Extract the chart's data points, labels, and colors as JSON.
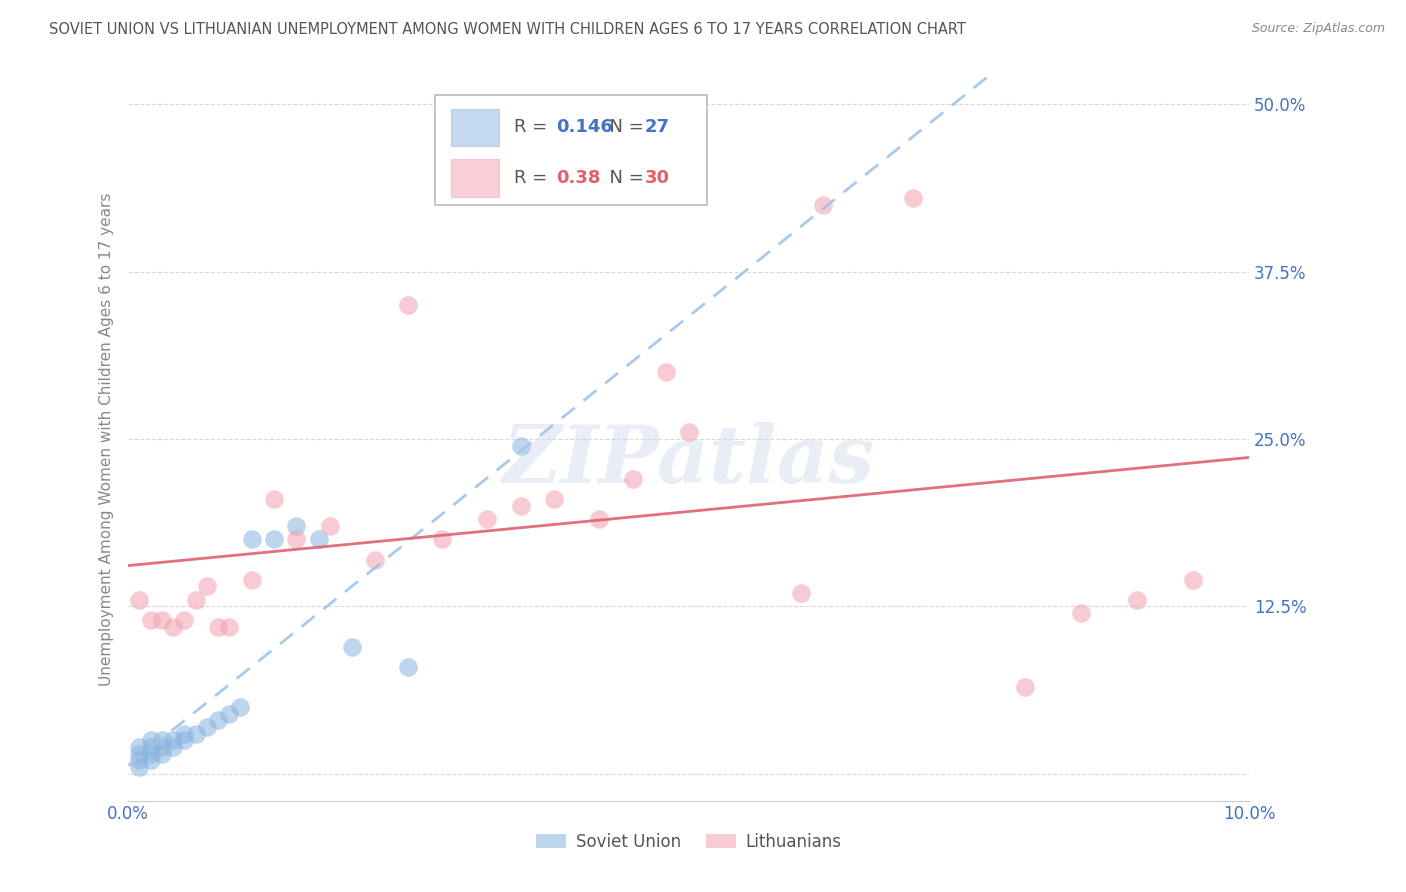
{
  "title": "SOVIET UNION VS LITHUANIAN UNEMPLOYMENT AMONG WOMEN WITH CHILDREN AGES 6 TO 17 YEARS CORRELATION CHART",
  "source": "Source: ZipAtlas.com",
  "ylabel": "Unemployment Among Women with Children Ages 6 to 17 years",
  "watermark": "ZIPatlas",
  "xlim": [
    0.0,
    0.1
  ],
  "ylim": [
    -0.02,
    0.52
  ],
  "yticks": [
    0.0,
    0.125,
    0.25,
    0.375,
    0.5
  ],
  "ytick_labels": [
    "",
    "12.5%",
    "25.0%",
    "37.5%",
    "50.0%"
  ],
  "xticks": [
    0.0,
    0.02,
    0.04,
    0.06,
    0.08,
    0.1
  ],
  "xtick_labels": [
    "0.0%",
    "",
    "",
    "",
    "",
    "10.0%"
  ],
  "soviet_R": 0.146,
  "soviet_N": 27,
  "lithuanian_R": 0.38,
  "lithuanian_N": 30,
  "soviet_color": "#8ab4e0",
  "lithuanian_color": "#f4a0b0",
  "soviet_line_color": "#a0c4e8",
  "lithuanian_line_color": "#e06070",
  "background_color": "#ffffff",
  "title_color": "#555555",
  "source_color": "#888888",
  "axis_label_color": "#888888",
  "tick_color": "#4472C4",
  "grid_color": "#d0d0d0",
  "soviet_x": [
    0.001,
    0.001,
    0.001,
    0.001,
    0.002,
    0.002,
    0.002,
    0.002,
    0.003,
    0.003,
    0.003,
    0.004,
    0.004,
    0.005,
    0.005,
    0.006,
    0.007,
    0.008,
    0.009,
    0.01,
    0.011,
    0.013,
    0.015,
    0.017,
    0.02,
    0.025,
    0.035
  ],
  "soviet_y": [
    0.005,
    0.01,
    0.015,
    0.02,
    0.01,
    0.015,
    0.02,
    0.025,
    0.015,
    0.02,
    0.025,
    0.02,
    0.025,
    0.025,
    0.03,
    0.03,
    0.035,
    0.04,
    0.045,
    0.05,
    0.175,
    0.175,
    0.185,
    0.175,
    0.095,
    0.08,
    0.245
  ],
  "lithuanian_x": [
    0.001,
    0.002,
    0.003,
    0.004,
    0.005,
    0.006,
    0.007,
    0.008,
    0.009,
    0.011,
    0.013,
    0.015,
    0.018,
    0.022,
    0.025,
    0.028,
    0.032,
    0.035,
    0.038,
    0.042,
    0.045,
    0.048,
    0.05,
    0.06,
    0.062,
    0.07,
    0.08,
    0.085,
    0.09,
    0.095
  ],
  "lithuanian_y": [
    0.13,
    0.115,
    0.115,
    0.11,
    0.115,
    0.13,
    0.14,
    0.11,
    0.11,
    0.145,
    0.205,
    0.175,
    0.185,
    0.16,
    0.35,
    0.175,
    0.19,
    0.2,
    0.205,
    0.19,
    0.22,
    0.3,
    0.255,
    0.135,
    0.425,
    0.43,
    0.065,
    0.12,
    0.13,
    0.145
  ]
}
